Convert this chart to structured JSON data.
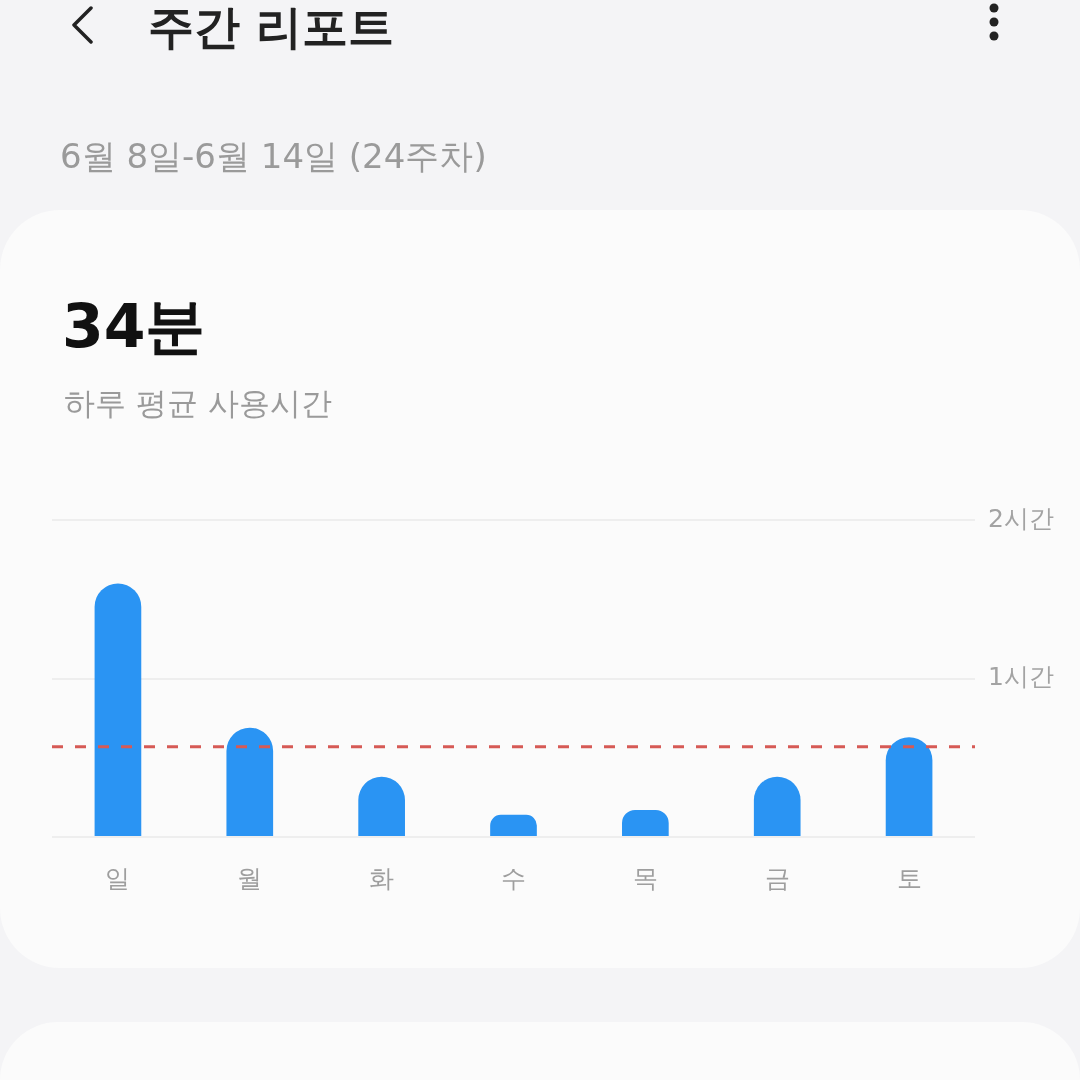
{
  "chart_data": {
    "type": "bar",
    "title": "주간 리포트",
    "subtitle": "6월 8일-6월 14일 (24주차)",
    "annotations": [
      "34분",
      "하루 평균 사용시간"
    ],
    "categories": [
      "일",
      "월",
      "화",
      "수",
      "목",
      "금",
      "토"
    ],
    "values": [
      1.6,
      0.69,
      0.38,
      0.14,
      0.17,
      0.38,
      0.63
    ],
    "color": "#2a94f3",
    "ylim": [
      0,
      2
    ],
    "yticks": [
      {
        "value": 0,
        "label": null
      },
      {
        "value": 1,
        "label": "1시간"
      },
      {
        "value": 2,
        "label": "2시간"
      }
    ],
    "grid": "y",
    "ref_lines": [
      {
        "axis": "y",
        "value": 0.57,
        "color": "#d65a55",
        "line_style": "dashed"
      }
    ]
  }
}
